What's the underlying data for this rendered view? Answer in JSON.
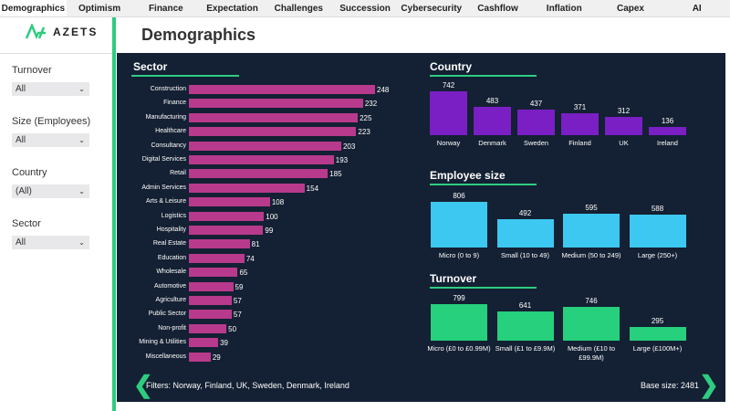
{
  "tabs": [
    "Demographics",
    "Optimism",
    "Finance",
    "Expectation",
    "Challenges",
    "Succession",
    "Cybersecurity",
    "Cashflow",
    "Inflation",
    "Capex",
    "AI"
  ],
  "active_tab": "Demographics",
  "logo": "AZETS",
  "page_title": "Demographics",
  "filters": [
    {
      "label": "Turnover",
      "value": "All"
    },
    {
      "label": "Size (Employees)",
      "value": "All"
    },
    {
      "label": "Country",
      "value": "(All)"
    },
    {
      "label": "Sector",
      "value": "All"
    }
  ],
  "colors": {
    "sector": "#b83a8c",
    "country": "#7a1fc4",
    "employee": "#3cc8f0",
    "turnover": "#26d07c",
    "accent": "#2ecc80",
    "panel": "#142033"
  },
  "sector": {
    "title": "Sector",
    "categories": [
      "Construction",
      "Finance",
      "Manufacturing",
      "Healthcare",
      "Consultancy",
      "Digital Services",
      "Retail",
      "Admin Services",
      "Arts & Leisure",
      "Logistics",
      "Hospitality",
      "Real Estate",
      "Education",
      "Wholesale",
      "Automotive",
      "Agriculture",
      "Public Sector",
      "Non-profit",
      "Mining & Utilities",
      "Miscellaneous"
    ],
    "values": [
      248,
      232,
      225,
      223,
      203,
      193,
      185,
      154,
      108,
      100,
      99,
      81,
      74,
      65,
      59,
      57,
      57,
      50,
      39,
      29
    ]
  },
  "country": {
    "title": "Country",
    "categories": [
      "Norway",
      "Denmark",
      "Sweden",
      "Finland",
      "UK",
      "Ireland"
    ],
    "values": [
      742,
      483,
      437,
      371,
      312,
      136
    ]
  },
  "employee": {
    "title": "Employee size",
    "categories": [
      "Micro (0 to 9)",
      "Small (10 to 49)",
      "Medium (50 to 249)",
      "Large (250+)"
    ],
    "values": [
      806,
      492,
      595,
      588
    ]
  },
  "turnover": {
    "title": "Turnover",
    "categories": [
      "Micro (£0 to £0.99M)",
      "Small (£1 to £9.9M)",
      "Medium (£10 to £99.9M)",
      "Large (£100M+)"
    ],
    "values": [
      799,
      641,
      746,
      295
    ]
  },
  "footer": {
    "filters_text": "Filters: Norway, Finland, UK, Sweden, Denmark, Ireland",
    "base_size": "Base size: 2481"
  }
}
